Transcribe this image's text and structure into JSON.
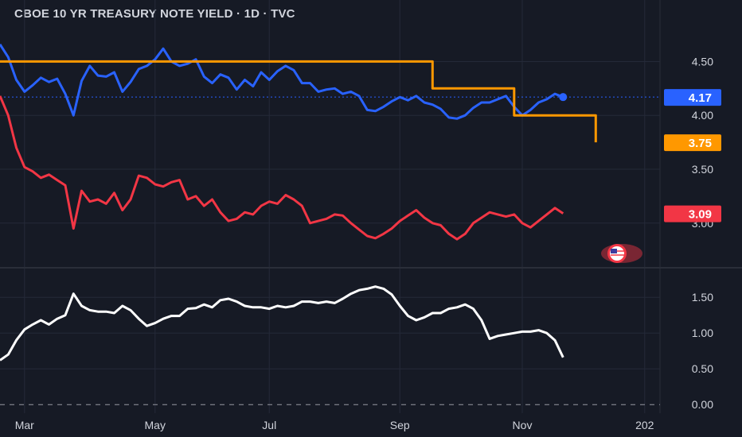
{
  "chart_title": "CBOE 10 YR TREASURY NOTE YIELD · 1D · TVC",
  "colors": {
    "background": "#161a25",
    "grid": "#242938",
    "axis_text": "#d1d4dc",
    "us10y": "#2962ff",
    "us2y": "#f23645",
    "spread": "#ffffff",
    "fed_rate": "#ff9800",
    "flag_badge": "#f23645"
  },
  "icons": {
    "flag_badge": "us-flag-icon"
  },
  "chart_data": [
    {
      "type": "line",
      "title": "CBOE 10 YR TREASURY NOTE YIELD · 1D · TVC",
      "ylim": [
        2.6,
        4.85
      ],
      "y_ticks": [
        "4.50",
        "4.00",
        "3.50",
        "3.00"
      ],
      "y_tick_values": [
        4.5,
        4.0,
        3.5,
        3.0
      ],
      "grid": true,
      "series": [
        {
          "key": "us10y",
          "color": "#2962ff",
          "last_value_label": "4.17",
          "values": [
            4.66,
            4.54,
            4.33,
            4.22,
            4.28,
            4.35,
            4.31,
            4.34,
            4.2,
            4.0,
            4.32,
            4.46,
            4.37,
            4.36,
            4.4,
            4.22,
            4.31,
            4.43,
            4.46,
            4.52,
            4.62,
            4.5,
            4.46,
            4.48,
            4.52,
            4.36,
            4.3,
            4.38,
            4.35,
            4.24,
            4.33,
            4.27,
            4.4,
            4.33,
            4.41,
            4.46,
            4.42,
            4.3,
            4.3,
            4.22,
            4.24,
            4.25,
            4.2,
            4.22,
            4.18,
            4.05,
            4.04,
            4.08,
            4.13,
            4.17,
            4.14,
            4.18,
            4.12,
            4.1,
            4.06,
            3.98,
            3.97,
            4.0,
            4.07,
            4.12,
            4.12,
            4.15,
            4.18,
            4.08,
            4.0,
            4.05,
            4.12,
            4.15,
            4.2,
            4.17
          ]
        },
        {
          "key": "us2y",
          "color": "#f23645",
          "last_value_label": "3.09",
          "values": [
            4.18,
            4.0,
            3.7,
            3.52,
            3.48,
            3.42,
            3.45,
            3.4,
            3.35,
            2.95,
            3.3,
            3.2,
            3.22,
            3.18,
            3.28,
            3.12,
            3.22,
            3.44,
            3.42,
            3.36,
            3.34,
            3.38,
            3.4,
            3.22,
            3.25,
            3.16,
            3.22,
            3.1,
            3.02,
            3.04,
            3.1,
            3.08,
            3.16,
            3.2,
            3.18,
            3.26,
            3.22,
            3.16,
            3.0,
            3.02,
            3.04,
            3.08,
            3.07,
            3.0,
            2.94,
            2.88,
            2.86,
            2.9,
            2.95,
            3.02,
            3.07,
            3.12,
            3.05,
            3.0,
            2.98,
            2.9,
            2.85,
            2.9,
            3.0,
            3.05,
            3.1,
            3.08,
            3.06,
            3.08,
            3.0,
            2.96,
            3.02,
            3.08,
            3.14,
            3.09
          ]
        },
        {
          "key": "fed_rate",
          "color": "#ff9800",
          "shape": "step",
          "last_value_label": "3.75",
          "steps": [
            [
              0,
              4.5
            ],
            [
              53,
              4.5
            ],
            [
              53,
              4.25
            ],
            [
              63,
              4.25
            ],
            [
              63,
              4.0
            ],
            [
              73,
              4.0
            ],
            [
              73,
              3.75
            ]
          ]
        }
      ]
    },
    {
      "type": "line",
      "ylim": [
        -0.12,
        1.88
      ],
      "y_ticks": [
        "1.50",
        "1.00",
        "0.50",
        "0.00"
      ],
      "y_tick_values": [
        1.5,
        1.0,
        0.5,
        0.0
      ],
      "zero_line": "dashed",
      "grid": true,
      "series": [
        {
          "key": "spread",
          "color": "#ffffff",
          "values": [
            0.62,
            0.7,
            0.9,
            1.05,
            1.12,
            1.18,
            1.12,
            1.2,
            1.25,
            1.55,
            1.38,
            1.32,
            1.3,
            1.3,
            1.28,
            1.38,
            1.32,
            1.2,
            1.1,
            1.14,
            1.2,
            1.24,
            1.24,
            1.34,
            1.35,
            1.4,
            1.36,
            1.46,
            1.48,
            1.44,
            1.38,
            1.36,
            1.36,
            1.34,
            1.38,
            1.36,
            1.38,
            1.44,
            1.44,
            1.42,
            1.44,
            1.42,
            1.48,
            1.55,
            1.6,
            1.62,
            1.65,
            1.62,
            1.54,
            1.38,
            1.24,
            1.18,
            1.22,
            1.28,
            1.28,
            1.34,
            1.36,
            1.4,
            1.34,
            1.18,
            0.92,
            0.96,
            0.98,
            1.0,
            1.02,
            1.02,
            1.04,
            1.0,
            0.9,
            0.66
          ]
        }
      ]
    }
  ],
  "x_axis": {
    "labels": [
      "Mar",
      "May",
      "Jul",
      "Sep",
      "Nov",
      "202"
    ],
    "label_index": [
      3,
      19,
      33,
      49,
      64,
      79
    ],
    "n_points": 81
  }
}
